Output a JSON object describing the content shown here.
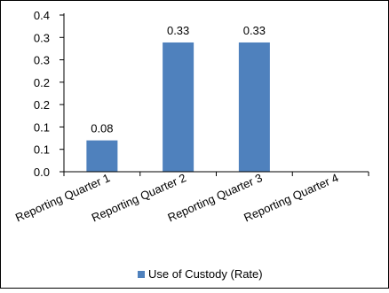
{
  "chart_data": {
    "type": "bar",
    "categories": [
      "Reporting Quarter 1",
      "Reporting Quarter 2",
      "Reporting Quarter 3",
      "Reporting Quarter 4"
    ],
    "series": [
      {
        "name": "Use of Custody (Rate)",
        "values": [
          0.08,
          0.33,
          0.33,
          0
        ],
        "labels": [
          "0.08",
          "0.33",
          "0.33",
          ""
        ],
        "color": "#4f81bd"
      }
    ],
    "title": "",
    "xlabel": "",
    "ylabel": "",
    "ylim": [
      0,
      0.4
    ],
    "y_ticks": [
      "0.0",
      "0.1",
      "0.1",
      "0.2",
      "0.2",
      "0.3",
      "0.3",
      "0.4"
    ],
    "grid": false,
    "legend_position": "bottom",
    "border_color": "#000000"
  }
}
